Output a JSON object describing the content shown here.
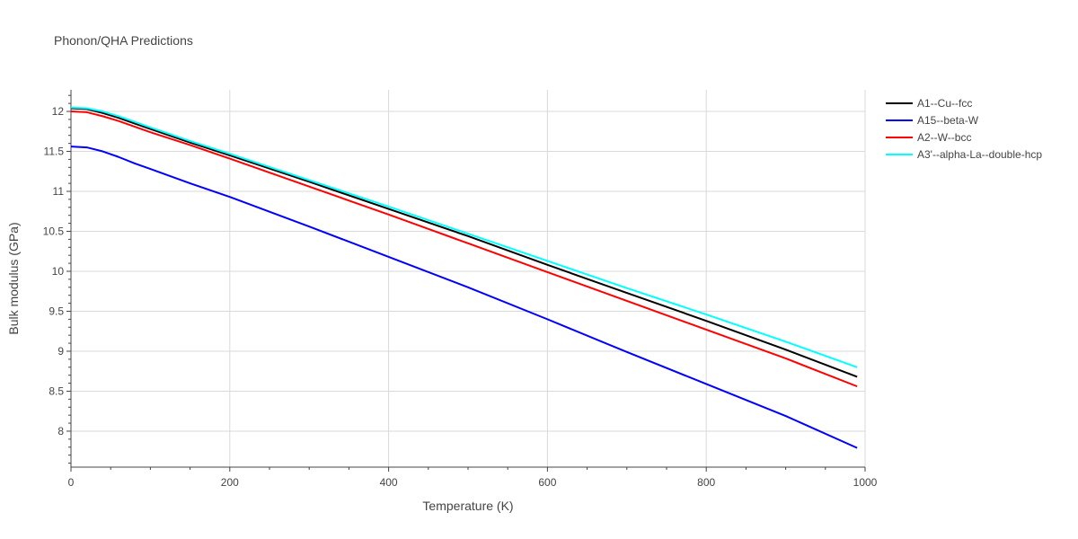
{
  "chart_data": {
    "type": "line",
    "title": "Phonon/QHA Predictions",
    "xlabel": "Temperature (K)",
    "ylabel": "Bulk modulus (GPa)",
    "xlim": [
      0,
      1000
    ],
    "ylim": [
      7.55,
      12.27
    ],
    "xticks": [
      0,
      200,
      400,
      600,
      800,
      1000
    ],
    "yticks": [
      8,
      8.5,
      9,
      9.5,
      10,
      10.5,
      11,
      11.5,
      12
    ],
    "xtick_labels": [
      "0",
      "200",
      "400",
      "600",
      "800",
      "1000"
    ],
    "ytick_labels": [
      "8",
      "8.5",
      "9",
      "9.5",
      "10",
      "10.5",
      "11",
      "11.5",
      "12"
    ],
    "grid": true,
    "legend_position": "top-right",
    "series": [
      {
        "name": "A1--Cu--fcc",
        "color": "#000000",
        "x": [
          0,
          20,
          40,
          60,
          80,
          100,
          150,
          200,
          300,
          400,
          500,
          600,
          700,
          800,
          900,
          990
        ],
        "y": [
          12.04,
          12.03,
          11.98,
          11.92,
          11.85,
          11.78,
          11.61,
          11.45,
          11.12,
          10.78,
          10.44,
          10.08,
          9.73,
          9.38,
          9.02,
          8.68
        ]
      },
      {
        "name": "A15--beta-W",
        "color": "#0000ff",
        "x": [
          0,
          20,
          40,
          60,
          80,
          100,
          150,
          200,
          300,
          400,
          500,
          600,
          700,
          800,
          900,
          990
        ],
        "y": [
          11.56,
          11.55,
          11.5,
          11.43,
          11.35,
          11.28,
          11.1,
          10.93,
          10.56,
          10.18,
          9.8,
          9.4,
          8.99,
          8.59,
          8.19,
          7.79
        ]
      },
      {
        "name": "A2--W--bcc",
        "color": "#ff0000",
        "x": [
          0,
          20,
          40,
          60,
          80,
          100,
          150,
          200,
          300,
          400,
          500,
          600,
          700,
          800,
          900,
          990
        ],
        "y": [
          12.0,
          11.99,
          11.94,
          11.88,
          11.81,
          11.74,
          11.58,
          11.41,
          11.06,
          10.71,
          10.35,
          9.99,
          9.63,
          9.27,
          8.91,
          8.56
        ]
      },
      {
        "name": "A3'--alpha-La--double-hcp",
        "color": "#00ffff",
        "x": [
          0,
          20,
          40,
          60,
          80,
          100,
          150,
          200,
          300,
          400,
          500,
          600,
          700,
          800,
          900,
          990
        ],
        "y": [
          12.05,
          12.04,
          12.0,
          11.94,
          11.87,
          11.8,
          11.63,
          11.47,
          11.14,
          10.81,
          10.47,
          10.13,
          9.79,
          9.46,
          9.12,
          8.8
        ]
      }
    ]
  }
}
